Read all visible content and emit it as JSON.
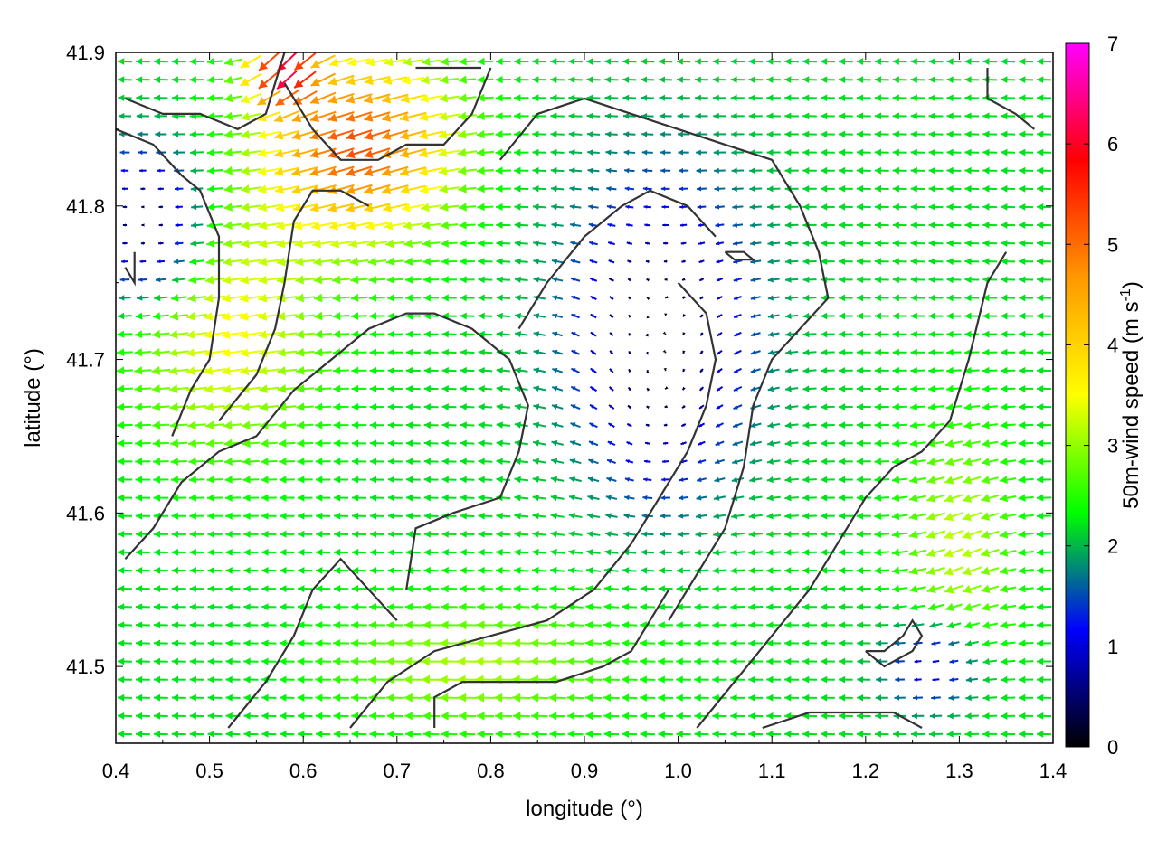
{
  "chart_data": {
    "type": "vector-field",
    "xlabel": "longitude (°)",
    "ylabel": "latitude (°)",
    "xlim": [
      0.4,
      1.4
    ],
    "ylim": [
      41.45,
      41.9
    ],
    "x_ticks": [
      "0.4",
      "0.5",
      "0.6",
      "0.7",
      "0.8",
      "0.9",
      "1.0",
      "1.1",
      "1.2",
      "1.3",
      "1.4"
    ],
    "y_ticks": [
      "41.5",
      "41.6",
      "41.7",
      "41.8",
      "41.9"
    ],
    "colorbar": {
      "label_main": "50m-wind speed (m s",
      "label_sup": "-1",
      "label_end": ")",
      "range": [
        0,
        7
      ],
      "ticks": [
        "0",
        "1",
        "2",
        "3",
        "4",
        "5",
        "6",
        "7"
      ],
      "palette": [
        "#000000",
        "#0000ff",
        "#00ff00",
        "#ffff00",
        "#ff9900",
        "#ff0000",
        "#ff00ff"
      ]
    },
    "vortex": {
      "lon": 0.98,
      "lat": 41.68
    },
    "contours": [
      [
        [
          0.41,
          41.87
        ],
        [
          0.45,
          41.86
        ],
        [
          0.49,
          41.86
        ],
        [
          0.53,
          41.85
        ],
        [
          0.56,
          41.86
        ],
        [
          0.57,
          41.88
        ],
        [
          0.58,
          41.9
        ]
      ],
      [
        [
          0.4,
          41.85
        ],
        [
          0.44,
          41.84
        ],
        [
          0.47,
          41.82
        ],
        [
          0.49,
          41.81
        ],
        [
          0.51,
          41.78
        ],
        [
          0.51,
          41.74
        ],
        [
          0.5,
          41.7
        ],
        [
          0.48,
          41.68
        ],
        [
          0.46,
          41.65
        ]
      ],
      [
        [
          0.51,
          41.66
        ],
        [
          0.55,
          41.69
        ],
        [
          0.57,
          41.72
        ],
        [
          0.58,
          41.75
        ],
        [
          0.59,
          41.79
        ],
        [
          0.61,
          41.81
        ],
        [
          0.64,
          41.81
        ],
        [
          0.67,
          41.8
        ]
      ],
      [
        [
          0.58,
          41.88
        ],
        [
          0.61,
          41.85
        ],
        [
          0.64,
          41.83
        ],
        [
          0.68,
          41.83
        ],
        [
          0.71,
          41.84
        ],
        [
          0.75,
          41.84
        ],
        [
          0.78,
          41.86
        ],
        [
          0.8,
          41.89
        ]
      ],
      [
        [
          0.41,
          41.57
        ],
        [
          0.44,
          41.59
        ],
        [
          0.47,
          41.62
        ],
        [
          0.51,
          41.64
        ],
        [
          0.55,
          41.65
        ],
        [
          0.59,
          41.68
        ],
        [
          0.63,
          41.7
        ],
        [
          0.67,
          41.72
        ],
        [
          0.71,
          41.73
        ],
        [
          0.74,
          41.73
        ],
        [
          0.78,
          41.72
        ],
        [
          0.82,
          41.7
        ],
        [
          0.84,
          41.67
        ],
        [
          0.83,
          41.64
        ],
        [
          0.81,
          41.61
        ],
        [
          0.76,
          41.6
        ],
        [
          0.72,
          41.59
        ],
        [
          0.71,
          41.55
        ]
      ],
      [
        [
          0.52,
          41.46
        ],
        [
          0.56,
          41.49
        ],
        [
          0.59,
          41.52
        ],
        [
          0.61,
          41.55
        ],
        [
          0.64,
          41.57
        ],
        [
          0.67,
          41.55
        ],
        [
          0.7,
          41.53
        ]
      ],
      [
        [
          0.65,
          41.46
        ],
        [
          0.69,
          41.49
        ],
        [
          0.74,
          41.51
        ],
        [
          0.8,
          41.52
        ],
        [
          0.86,
          41.53
        ],
        [
          0.91,
          41.55
        ],
        [
          0.95,
          41.58
        ],
        [
          0.98,
          41.61
        ],
        [
          1.01,
          41.64
        ],
        [
          1.03,
          41.67
        ],
        [
          1.04,
          41.7
        ],
        [
          1.03,
          41.73
        ],
        [
          1.0,
          41.75
        ]
      ],
      [
        [
          0.74,
          41.46
        ],
        [
          0.74,
          41.48
        ],
        [
          0.77,
          41.49
        ],
        [
          0.82,
          41.49
        ],
        [
          0.87,
          41.49
        ],
        [
          0.92,
          41.5
        ],
        [
          0.95,
          41.51
        ],
        [
          0.97,
          41.53
        ],
        [
          0.99,
          41.55
        ]
      ],
      [
        [
          1.02,
          41.46
        ],
        [
          1.06,
          41.49
        ],
        [
          1.1,
          41.52
        ],
        [
          1.14,
          41.55
        ],
        [
          1.17,
          41.58
        ],
        [
          1.2,
          41.61
        ],
        [
          1.23,
          41.63
        ],
        [
          1.26,
          41.64
        ],
        [
          1.29,
          41.66
        ],
        [
          1.31,
          41.7
        ],
        [
          1.33,
          41.75
        ],
        [
          1.35,
          41.77
        ]
      ],
      [
        [
          0.81,
          41.83
        ],
        [
          0.85,
          41.86
        ],
        [
          0.9,
          41.87
        ],
        [
          0.95,
          41.86
        ],
        [
          1.0,
          41.85
        ],
        [
          1.05,
          41.84
        ],
        [
          1.1,
          41.83
        ],
        [
          1.13,
          41.8
        ],
        [
          1.15,
          41.77
        ],
        [
          1.16,
          41.74
        ],
        [
          1.13,
          41.72
        ],
        [
          1.1,
          41.7
        ],
        [
          1.08,
          41.67
        ],
        [
          1.07,
          41.63
        ],
        [
          1.05,
          41.59
        ],
        [
          1.02,
          41.56
        ],
        [
          0.99,
          41.53
        ]
      ],
      [
        [
          0.83,
          41.72
        ],
        [
          0.86,
          41.75
        ],
        [
          0.9,
          41.78
        ],
        [
          0.94,
          41.8
        ],
        [
          0.97,
          41.81
        ],
        [
          1.01,
          41.8
        ],
        [
          1.04,
          41.78
        ]
      ],
      [
        [
          1.05,
          41.77
        ],
        [
          1.06,
          41.765
        ],
        [
          1.08,
          41.765
        ],
        [
          1.07,
          41.77
        ],
        [
          1.05,
          41.77
        ]
      ],
      [
        [
          1.2,
          41.51
        ],
        [
          1.22,
          41.51
        ],
        [
          1.24,
          41.52
        ],
        [
          1.25,
          41.53
        ],
        [
          1.26,
          41.52
        ],
        [
          1.25,
          41.51
        ],
        [
          1.22,
          41.5
        ],
        [
          1.2,
          41.51
        ]
      ],
      [
        [
          1.09,
          41.46
        ],
        [
          1.14,
          41.47
        ],
        [
          1.19,
          41.47
        ],
        [
          1.23,
          41.47
        ],
        [
          1.26,
          41.46
        ]
      ],
      [
        [
          1.33,
          41.89
        ],
        [
          1.33,
          41.87
        ],
        [
          1.36,
          41.86
        ],
        [
          1.38,
          41.85
        ]
      ],
      [
        [
          0.72,
          41.89
        ],
        [
          0.76,
          41.89
        ],
        [
          0.79,
          41.89
        ]
      ],
      [
        [
          0.41,
          41.76
        ],
        [
          0.42,
          41.75
        ],
        [
          0.42,
          41.77
        ]
      ]
    ]
  }
}
